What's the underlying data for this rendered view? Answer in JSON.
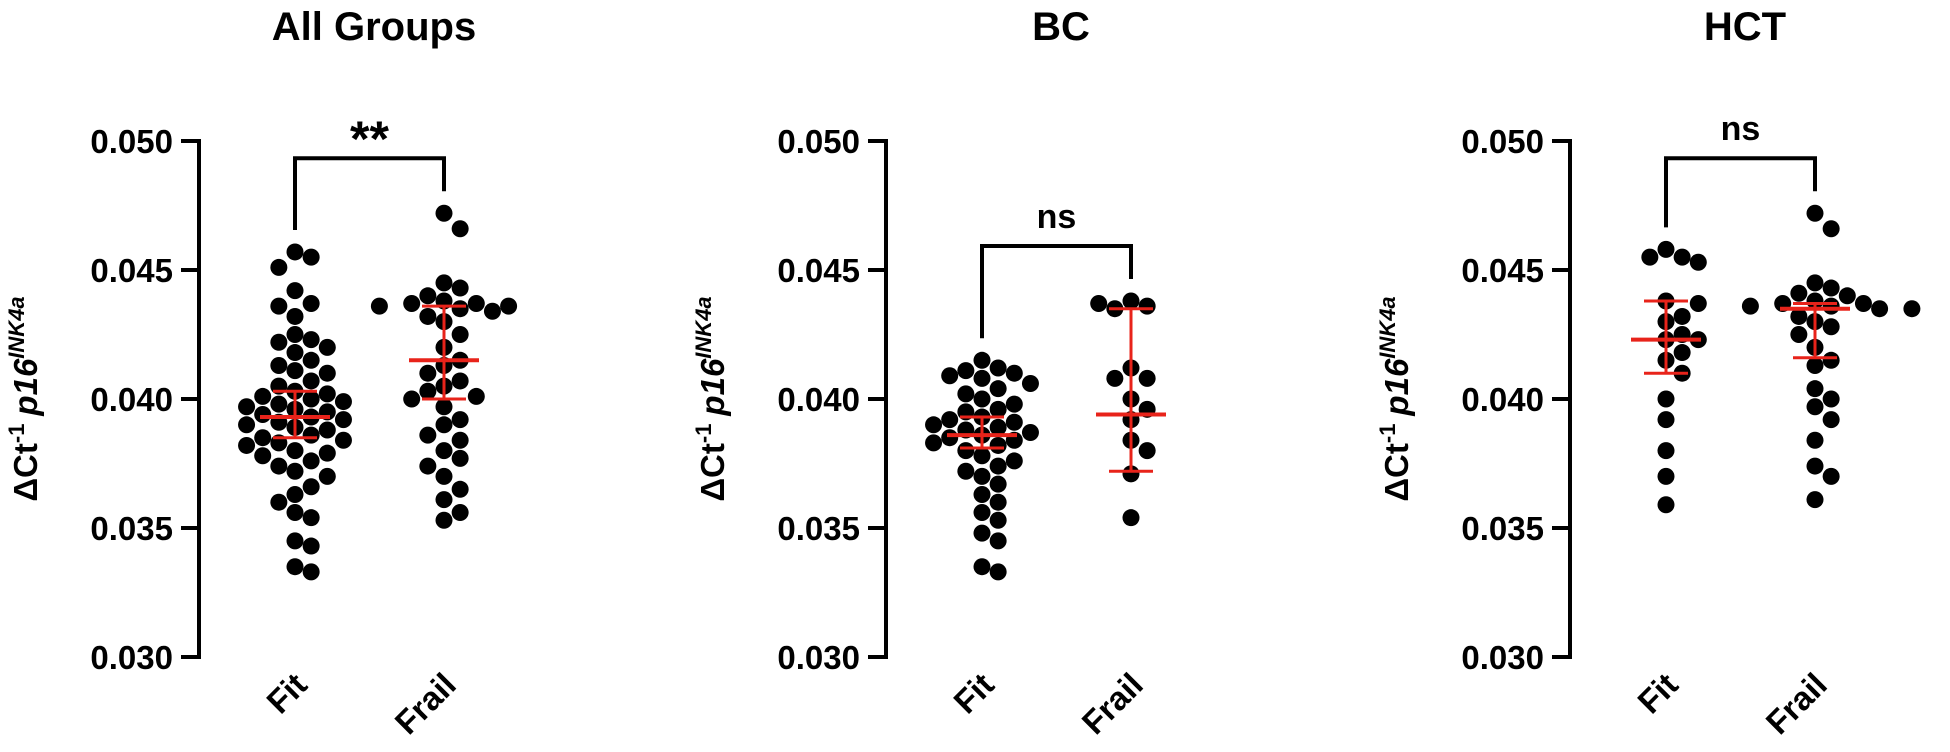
{
  "chart_data": [
    {
      "type": "dot",
      "title": "All Groups",
      "ylabel": {
        "main": "ΔCt",
        "exp": "-1",
        "gene": "p16",
        "sup": "INK4a"
      },
      "categories": [
        "Fit",
        "Frail"
      ],
      "annotation": "**",
      "color": "#000000",
      "summary_color": "#e8231a",
      "ylim": [
        0.03,
        0.05
      ],
      "yticks": [
        {
          "value": 0.03,
          "label": "0.030"
        },
        0.035,
        {
          "value": 0.04,
          "label": "0.040"
        },
        0.045,
        {
          "value": 0.05,
          "label": "0.050"
        }
      ],
      "groups": [
        {
          "values": [
            0.0457,
            0.0455,
            0.0451,
            0.0442,
            0.0437,
            0.0436,
            0.0432,
            0.0425,
            0.0423,
            0.0422,
            0.042,
            0.0418,
            0.0415,
            0.0413,
            0.0411,
            0.041,
            0.0407,
            0.0405,
            0.0403,
            0.0402,
            0.0401,
            0.04,
            0.0399,
            0.0398,
            0.0397,
            0.0396,
            0.0395,
            0.0394,
            0.0393,
            0.0392,
            0.0391,
            0.039,
            0.0389,
            0.0388,
            0.0386,
            0.0385,
            0.0384,
            0.0383,
            0.0382,
            0.038,
            0.0379,
            0.0378,
            0.0376,
            0.0374,
            0.0372,
            0.037,
            0.0366,
            0.0363,
            0.036,
            0.0356,
            0.0354,
            0.0345,
            0.0343,
            0.0335,
            0.0333
          ],
          "center": 0.0393,
          "error": [
            0.0385,
            0.0403
          ]
        },
        {
          "values": [
            0.0472,
            0.0466,
            0.0445,
            0.0443,
            0.044,
            0.0438,
            0.0437,
            0.0437,
            0.0436,
            0.0436,
            0.0435,
            0.0434,
            0.0432,
            0.043,
            0.0425,
            0.042,
            0.0415,
            0.0413,
            0.041,
            0.0407,
            0.0405,
            0.0403,
            0.0401,
            0.04,
            0.0397,
            0.0392,
            0.039,
            0.0386,
            0.0384,
            0.038,
            0.0377,
            0.0374,
            0.037,
            0.0365,
            0.0361,
            0.0356,
            0.0353
          ],
          "center": 0.0415,
          "error": [
            0.04,
            0.0436
          ]
        }
      ]
    },
    {
      "type": "dot",
      "title": "BC",
      "ylabel": {
        "main": "ΔCt",
        "exp": "-1",
        "gene": "p16",
        "sup": "INK4a"
      },
      "categories": [
        "Fit",
        "Frail"
      ],
      "annotation": "ns",
      "color": "#000000",
      "summary_color": "#e8231a",
      "ylim": [
        0.03,
        0.05
      ],
      "yticks": [
        {
          "value": 0.03,
          "label": "0.030"
        },
        0.035,
        {
          "value": 0.04,
          "label": "0.040"
        },
        0.045,
        {
          "value": 0.05,
          "label": "0.050"
        }
      ],
      "groups": [
        {
          "values": [
            0.0415,
            0.0412,
            0.0411,
            0.041,
            0.0409,
            0.0408,
            0.0406,
            0.0404,
            0.0402,
            0.04,
            0.0398,
            0.0396,
            0.0395,
            0.0393,
            0.0392,
            0.0391,
            0.039,
            0.0389,
            0.0388,
            0.0387,
            0.0386,
            0.0385,
            0.0384,
            0.0383,
            0.0382,
            0.038,
            0.0378,
            0.0376,
            0.0374,
            0.0372,
            0.037,
            0.0367,
            0.0363,
            0.036,
            0.0356,
            0.0353,
            0.0348,
            0.0345,
            0.0335,
            0.0333
          ],
          "center": 0.0386,
          "error": [
            0.0381,
            0.0393
          ]
        },
        {
          "values": [
            0.0438,
            0.0436,
            0.0437,
            0.0435,
            0.0412,
            0.0408,
            0.0408,
            0.04,
            0.0396,
            0.0392,
            0.0384,
            0.038,
            0.0371,
            0.0354
          ],
          "center": 0.0394,
          "error": [
            0.0372,
            0.0435
          ]
        }
      ]
    },
    {
      "type": "dot",
      "title": "HCT",
      "ylabel": {
        "main": "ΔCt",
        "exp": "-1",
        "gene": "p16",
        "sup": "INK4a"
      },
      "categories": [
        "Fit",
        "Frail"
      ],
      "annotation": "ns",
      "color": "#000000",
      "summary_color": "#e8231a",
      "ylim": [
        0.03,
        0.05
      ],
      "yticks": [
        {
          "value": 0.03,
          "label": "0.030"
        },
        0.035,
        {
          "value": 0.04,
          "label": "0.040"
        },
        0.045,
        {
          "value": 0.05,
          "label": "0.050"
        }
      ],
      "groups": [
        {
          "values": [
            0.0458,
            0.0455,
            0.0455,
            0.0453,
            0.0438,
            0.0437,
            0.0432,
            0.043,
            0.0425,
            0.0423,
            0.0423,
            0.0418,
            0.0415,
            0.041,
            0.04,
            0.0392,
            0.038,
            0.037,
            0.0359
          ],
          "center": 0.0423,
          "error": [
            0.041,
            0.0438
          ]
        },
        {
          "values": [
            0.0472,
            0.0466,
            0.0445,
            0.0443,
            0.0441,
            0.044,
            0.0438,
            0.0437,
            0.0437,
            0.0436,
            0.0436,
            0.0435,
            0.0435,
            0.0432,
            0.043,
            0.0428,
            0.0425,
            0.042,
            0.0415,
            0.0413,
            0.0404,
            0.04,
            0.0397,
            0.0392,
            0.0384,
            0.0374,
            0.037,
            0.0361
          ],
          "center": 0.0435,
          "error": [
            0.0416,
            0.0437
          ]
        }
      ]
    }
  ]
}
